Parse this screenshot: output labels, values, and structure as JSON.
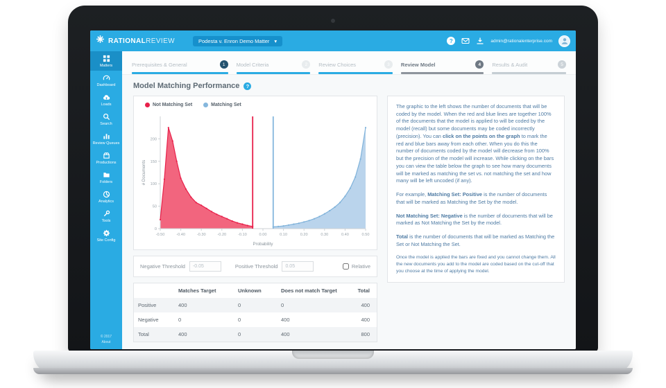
{
  "header": {
    "brand_primary": "RATIONAL",
    "brand_secondary": "REVIEW",
    "matter_selector": {
      "label": "Podesta v. Enron Demo Matter",
      "caret": "▾"
    },
    "help_glyph": "?",
    "user_email": "admin@rationalenterprise.com"
  },
  "sidebar": {
    "items": [
      {
        "label": "Matters"
      },
      {
        "label": "Dashboard"
      },
      {
        "label": "Loads"
      },
      {
        "label": "Search"
      },
      {
        "label": "Review Queues"
      },
      {
        "label": "Productions"
      },
      {
        "label": "Folders"
      },
      {
        "label": "Analytics"
      },
      {
        "label": "Tools"
      },
      {
        "label": "Site Config"
      }
    ],
    "footer": {
      "line1": "© 2017",
      "line2": "About"
    }
  },
  "stepper": {
    "steps": [
      {
        "label": "Prerequisites & General",
        "number": "1"
      },
      {
        "label": "Model Criteria",
        "number": "2"
      },
      {
        "label": "Review Choices",
        "number": "3"
      },
      {
        "label": "Review Model",
        "number": "4"
      },
      {
        "label": "Results & Audit",
        "number": "5"
      }
    ]
  },
  "page": {
    "title": "Model Matching Performance",
    "help_badge": "?"
  },
  "legend": [
    {
      "label": "Not Matching Set",
      "color": "#e8204a"
    },
    {
      "label": "Matching Set",
      "color": "#85b7dd"
    }
  ],
  "thresholds": {
    "negative_label": "Negative Threshold",
    "negative_value": "-0.05",
    "positive_label": "Positive Threshold",
    "positive_value": "0.05",
    "relative_label": "Relative",
    "relative_checked": false
  },
  "table": {
    "headers": [
      "",
      "Matches Target",
      "Unknown",
      "Does not match Target",
      "Total"
    ],
    "rows": [
      {
        "label": "Positive",
        "values": [
          "400",
          "0",
          "0",
          "400"
        ]
      },
      {
        "label": "Negative",
        "values": [
          "0",
          "0",
          "400",
          "400"
        ]
      },
      {
        "label": "Total",
        "values": [
          "400",
          "0",
          "400",
          "800"
        ]
      }
    ]
  },
  "info_panel": {
    "paragraphs": [
      {
        "segments": [
          {
            "text": "The graphic to the left shows the number of documents that will be coded by the model. When the red and blue lines are together 100% of the documents that the model is applied to will be coded by the model (recall) but some documents may be coded incorrectly (precision). You can "
          },
          {
            "text": "click on the points on the graph",
            "bold": true
          },
          {
            "text": " to mark the red and blue bars away from each other. When you do this the number of documents coded by the model will decrease from 100% but the precision of the model will increase. While clicking on the bars you can view the table below the graph to see how many documents will be marked as matching the set vs. not matching the set and how many will be left uncoded (if any)."
          }
        ]
      },
      {
        "segments": [
          {
            "text": "For example, "
          },
          {
            "text": "Matching Set: Positive",
            "bold": true
          },
          {
            "text": " is the number of documents that will be marked as Matching the Set by the model."
          }
        ]
      },
      {
        "segments": [
          {
            "text": "Not Matching Set: Negative",
            "bold": true
          },
          {
            "text": " is the number of documents that will be marked as Not Matching the Set by the model."
          }
        ]
      },
      {
        "segments": [
          {
            "text": "Total",
            "bold": true
          },
          {
            "text": " is the number of documents that will be marked as Matching the Set or Not Matching the Set."
          }
        ]
      },
      {
        "small": true,
        "segments": [
          {
            "text": "Once the model is applied the bars are fixed and you cannot change them. All the new documents you add to the model are coded based on the cut-off that you choose at the time of applying the model."
          }
        ]
      }
    ]
  },
  "chart_data": {
    "type": "area",
    "title": "",
    "xlabel": "Probability",
    "ylabel": "# Documents",
    "xlim": [
      -0.5,
      0.5
    ],
    "ylim": [
      0,
      250
    ],
    "grid": false,
    "legend_position": "top-left",
    "x_ticks": [
      -0.5,
      -0.4,
      -0.3,
      -0.2,
      -0.1,
      0,
      0.1,
      0.2,
      0.3,
      0.4,
      0.5
    ],
    "x_tick_labels": [
      "-0.50",
      "-0.40",
      "-0.30",
      "-0.20",
      "-0.10",
      "0.00",
      "0.10",
      "0.20",
      "0.30",
      "0.40",
      "0.50"
    ],
    "y_ticks": [
      0,
      50,
      100,
      150,
      200
    ],
    "series": [
      {
        "name": "Not Matching Set",
        "color": "#e8204a",
        "fill": "#ef3e5e",
        "fill_opacity": 0.8,
        "points": [
          [
            -0.5,
            20
          ],
          [
            -0.48,
            110
          ],
          [
            -0.46,
            225
          ],
          [
            -0.44,
            195
          ],
          [
            -0.42,
            150
          ],
          [
            -0.4,
            112
          ],
          [
            -0.375,
            88
          ],
          [
            -0.35,
            70
          ],
          [
            -0.325,
            58
          ],
          [
            -0.3,
            52
          ],
          [
            -0.275,
            45
          ],
          [
            -0.25,
            38
          ],
          [
            -0.225,
            32
          ],
          [
            -0.2,
            27
          ],
          [
            -0.175,
            22
          ],
          [
            -0.15,
            17
          ],
          [
            -0.125,
            13
          ],
          [
            -0.1,
            10
          ],
          [
            -0.075,
            7
          ],
          [
            -0.05,
            5
          ]
        ]
      },
      {
        "name": "Matching Set",
        "color": "#7fb2da",
        "fill": "#aecde9",
        "fill_opacity": 0.85,
        "points": [
          [
            0.05,
            4
          ],
          [
            0.075,
            5
          ],
          [
            0.1,
            6
          ],
          [
            0.125,
            8
          ],
          [
            0.15,
            10
          ],
          [
            0.175,
            12
          ],
          [
            0.2,
            15
          ],
          [
            0.225,
            18
          ],
          [
            0.25,
            22
          ],
          [
            0.275,
            27
          ],
          [
            0.3,
            33
          ],
          [
            0.325,
            40
          ],
          [
            0.35,
            48
          ],
          [
            0.375,
            58
          ],
          [
            0.4,
            72
          ],
          [
            0.425,
            90
          ],
          [
            0.45,
            115
          ],
          [
            0.475,
            155
          ],
          [
            0.5,
            225
          ]
        ]
      }
    ],
    "vlines": [
      {
        "x": -0.05,
        "color": "#e8204a",
        "label": "negative-threshold"
      },
      {
        "x": 0.05,
        "color": "#85b7dd",
        "label": "positive-threshold"
      }
    ]
  }
}
